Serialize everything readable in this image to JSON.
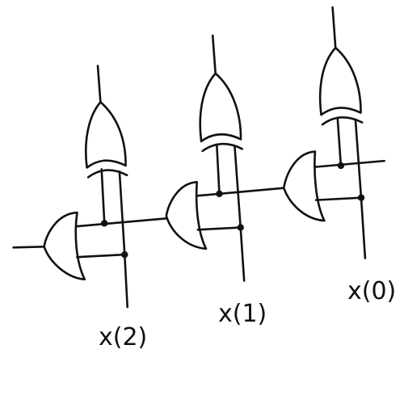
{
  "diagram": {
    "inputs": [
      {
        "label": "x(2)"
      },
      {
        "label": "x(1)"
      },
      {
        "label": "x(0)"
      }
    ],
    "colors": {
      "ink": "#111111",
      "background": "#ffffff"
    }
  }
}
